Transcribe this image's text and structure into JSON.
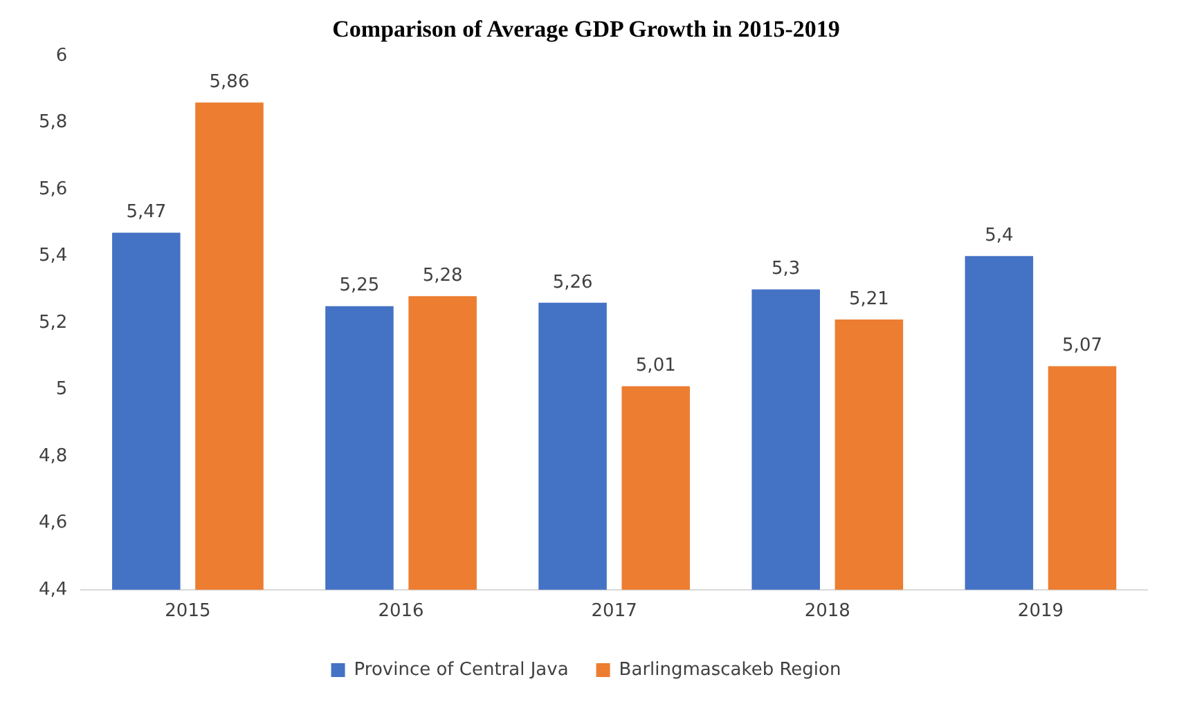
{
  "chart_data": {
    "type": "bar",
    "title": "Comparison of Average GDP Growth in 2015-2019",
    "categories": [
      "2015",
      "2016",
      "2017",
      "2018",
      "2019"
    ],
    "series": [
      {
        "name": "Province of Central Java",
        "color": "#4472c4",
        "values": [
          5.47,
          5.25,
          5.26,
          5.3,
          5.4
        ],
        "value_labels": [
          "5,47",
          "5,25",
          "5,26",
          "5,3",
          "5,4"
        ]
      },
      {
        "name": "Barlingmascakeb Region",
        "color": "#ed7d31",
        "values": [
          5.86,
          5.28,
          5.01,
          5.21,
          5.07
        ],
        "value_labels": [
          "5,86",
          "5,28",
          "5,01",
          "5,21",
          "5,07"
        ]
      }
    ],
    "ylim": [
      4.4,
      6
    ],
    "yticks": [
      {
        "value": 4.4,
        "label": "4,4"
      },
      {
        "value": 4.6,
        "label": "4,6"
      },
      {
        "value": 4.8,
        "label": "4,8"
      },
      {
        "value": 5,
        "label": "5"
      },
      {
        "value": 5.2,
        "label": "5,2"
      },
      {
        "value": 5.4,
        "label": "5,4"
      },
      {
        "value": 5.6,
        "label": "5,6"
      },
      {
        "value": 5.8,
        "label": "5,8"
      },
      {
        "value": 6,
        "label": "6"
      }
    ],
    "legend": "bottom"
  }
}
